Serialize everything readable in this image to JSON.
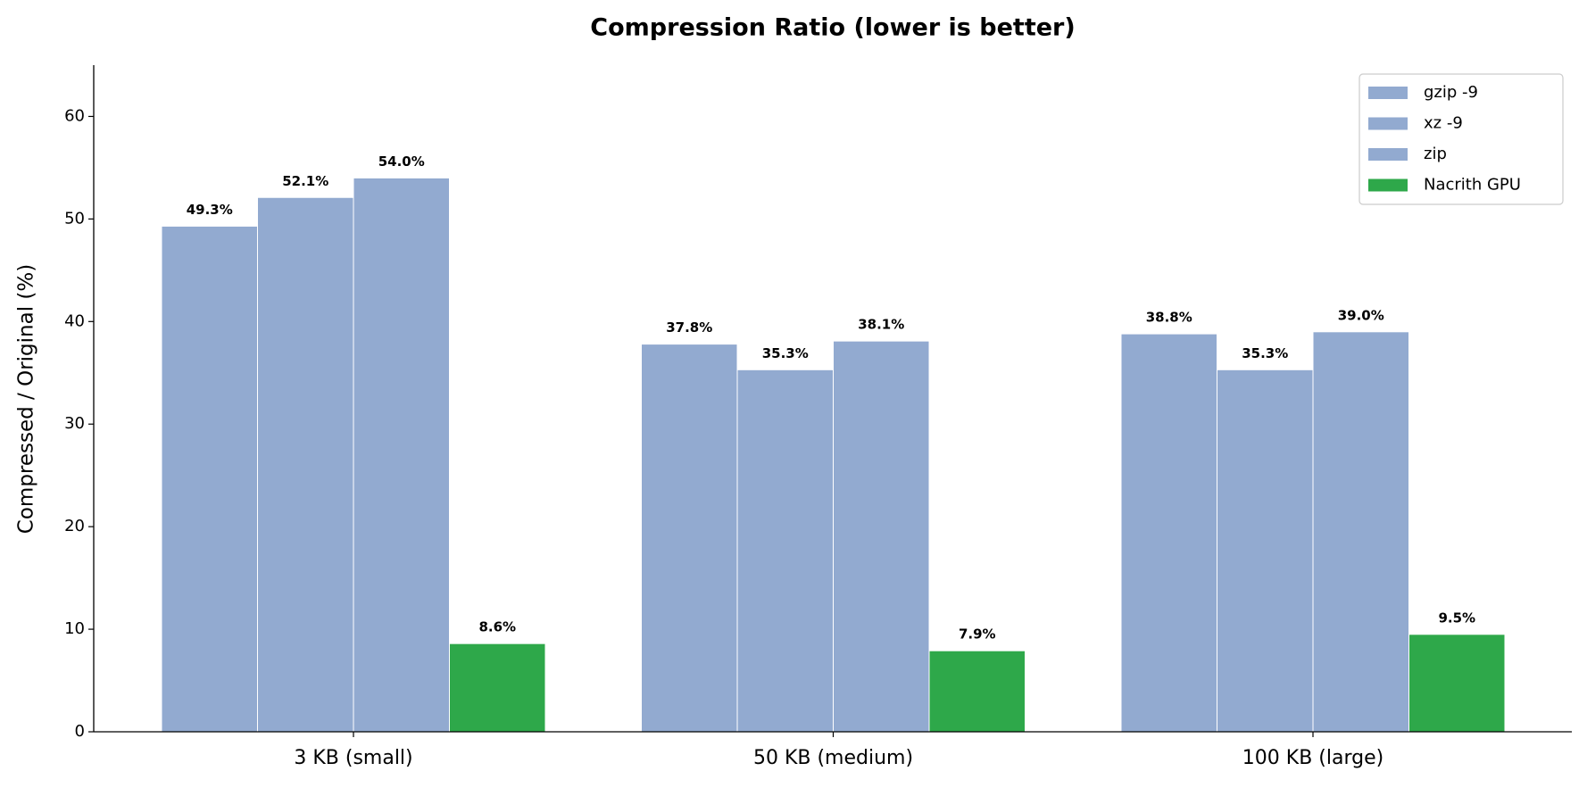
{
  "chart_data": {
    "type": "bar",
    "title": "Compression Ratio (lower is better)",
    "y_label": "Compressed / Original (%)",
    "categories": [
      "3 KB (small)",
      "50 KB (medium)",
      "100 KB (large)"
    ],
    "series": [
      {
        "name": "gzip -9",
        "color": "#92aad0",
        "values": [
          49.3,
          37.8,
          38.8
        ],
        "value_labels": [
          "49.3%",
          "37.8%",
          "38.8%"
        ]
      },
      {
        "name": "xz -9",
        "color": "#92aad0",
        "values": [
          52.1,
          35.3,
          35.3
        ],
        "value_labels": [
          "52.1%",
          "35.3%",
          "35.3%"
        ]
      },
      {
        "name": "zip",
        "color": "#92aad0",
        "values": [
          54.0,
          38.1,
          39.0
        ],
        "value_labels": [
          "54.0%",
          "38.1%",
          "39.0%"
        ]
      },
      {
        "name": "Nacrith GPU",
        "color": "#2ea84a",
        "values": [
          8.6,
          7.9,
          9.5
        ],
        "value_labels": [
          "8.6%",
          "7.9%",
          "9.5%"
        ]
      }
    ],
    "ylim": [
      0,
      65
    ],
    "yticks": [
      0,
      10,
      20,
      30,
      40,
      50,
      60
    ],
    "grid": false,
    "legend": "upper right"
  }
}
